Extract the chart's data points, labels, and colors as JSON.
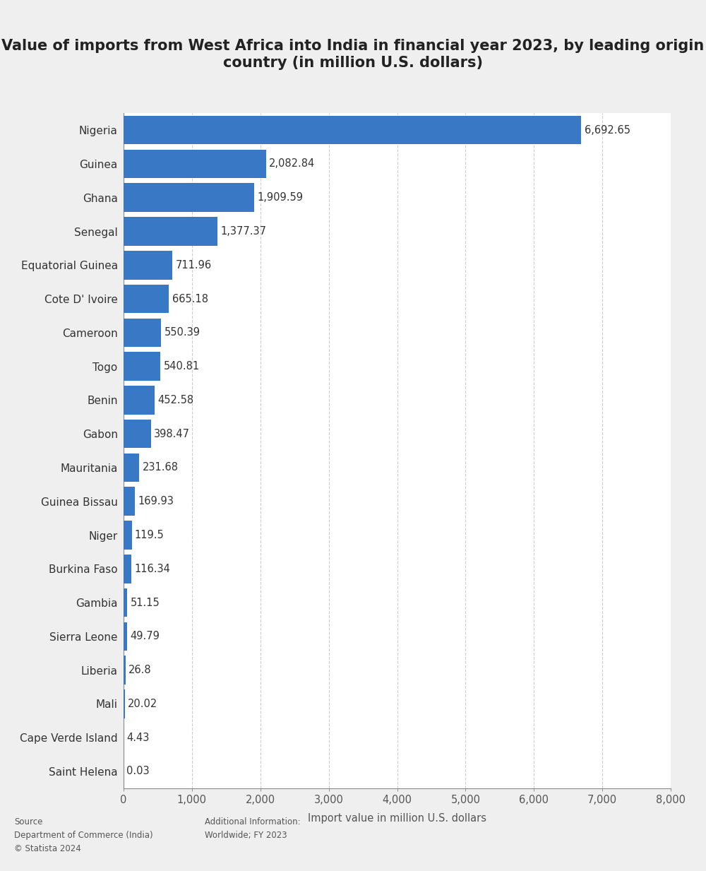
{
  "title": "Value of imports from West Africa into India in financial year 2023, by leading origin\ncountry (in million U.S. dollars)",
  "categories": [
    "Nigeria",
    "Guinea",
    "Ghana",
    "Senegal",
    "Equatorial Guinea",
    "Cote D' Ivoire",
    "Cameroon",
    "Togo",
    "Benin",
    "Gabon",
    "Mauritania",
    "Guinea Bissau",
    "Niger",
    "Burkina Faso",
    "Gambia",
    "Sierra Leone",
    "Liberia",
    "Mali",
    "Cape Verde Island",
    "Saint Helena"
  ],
  "values": [
    6692.65,
    2082.84,
    1909.59,
    1377.37,
    711.96,
    665.18,
    550.39,
    540.81,
    452.58,
    398.47,
    231.68,
    169.93,
    119.5,
    116.34,
    51.15,
    49.79,
    26.8,
    20.02,
    4.43,
    0.03
  ],
  "value_labels": [
    "6,692.65",
    "2,082.84",
    "1,909.59",
    "1,377.37",
    "711.96",
    "665.18",
    "550.39",
    "540.81",
    "452.58",
    "398.47",
    "231.68",
    "169.93",
    "119.5",
    "116.34",
    "51.15",
    "49.79",
    "26.8",
    "20.02",
    "4.43",
    "0.03"
  ],
  "bar_color": "#3878c5",
  "background_color": "#efefef",
  "plot_background_color": "#ffffff",
  "xlabel": "Import value in million U.S. dollars",
  "xlim": [
    0,
    8000
  ],
  "xticks": [
    0,
    1000,
    2000,
    3000,
    4000,
    5000,
    6000,
    7000,
    8000
  ],
  "xtick_labels": [
    "0",
    "1,000",
    "2,000",
    "3,000",
    "4,000",
    "5,000",
    "6,000",
    "7,000",
    "8,000"
  ],
  "title_fontsize": 15,
  "label_fontsize": 11,
  "tick_fontsize": 10.5,
  "value_fontsize": 10.5,
  "source_text": "Source\nDepartment of Commerce (India)\n© Statista 2024",
  "additional_text": "Additional Information:\nWorldwide; FY 2023"
}
